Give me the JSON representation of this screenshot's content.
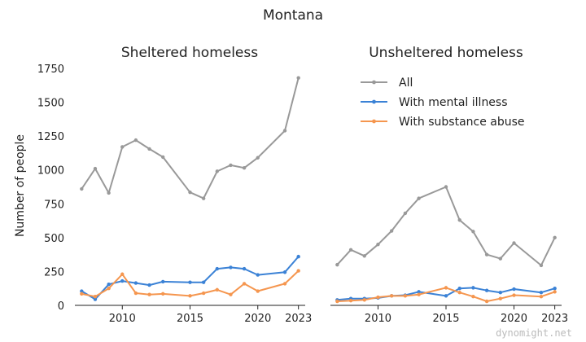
{
  "title": "Montana",
  "watermark": "dynomight.net",
  "colors": {
    "all": "#999999",
    "mental": "#3b82d6",
    "substance": "#f5964f"
  },
  "chart_data": [
    {
      "type": "line",
      "title": "Sheltered homeless",
      "ylabel": "Number of people",
      "xlim": [
        2006.5,
        2023.5
      ],
      "ylim": [
        0,
        1750
      ],
      "xticks": [
        "2010",
        "2015",
        "2020",
        "2023"
      ],
      "yticks": [
        "0",
        "250",
        "500",
        "750",
        "1000",
        "1250",
        "1500",
        "1750"
      ],
      "x": [
        2007,
        2008,
        2009,
        2010,
        2011,
        2012,
        2013,
        2015,
        2016,
        2017,
        2018,
        2019,
        2020,
        2022,
        2023
      ],
      "series": [
        {
          "name": "All",
          "color": "#999999",
          "values": [
            860,
            1010,
            830,
            1170,
            1220,
            1155,
            1095,
            835,
            790,
            990,
            1035,
            1015,
            1090,
            1290,
            1680
          ]
        },
        {
          "name": "With mental illness",
          "color": "#3b82d6",
          "values": [
            105,
            45,
            155,
            180,
            165,
            150,
            175,
            170,
            170,
            270,
            280,
            270,
            225,
            245,
            360
          ]
        },
        {
          "name": "With substance abuse",
          "color": "#f5964f",
          "values": [
            85,
            65,
            125,
            230,
            90,
            80,
            85,
            70,
            90,
            115,
            80,
            160,
            105,
            160,
            255
          ]
        }
      ]
    },
    {
      "type": "line",
      "title": "Unsheltered homeless",
      "xlim": [
        2006.5,
        2023.5
      ],
      "ylim": [
        0,
        1750
      ],
      "xticks": [
        "2010",
        "2015",
        "2020",
        "2023"
      ],
      "x": [
        2007,
        2008,
        2009,
        2010,
        2011,
        2012,
        2013,
        2015,
        2016,
        2017,
        2018,
        2019,
        2020,
        2022,
        2023
      ],
      "legend": {
        "placement": "top-right"
      },
      "series": [
        {
          "name": "All",
          "color": "#999999",
          "values": [
            300,
            410,
            365,
            450,
            550,
            680,
            790,
            875,
            630,
            545,
            375,
            345,
            460,
            295,
            500
          ]
        },
        {
          "name": "With mental illness",
          "color": "#3b82d6",
          "values": [
            40,
            50,
            50,
            55,
            70,
            75,
            100,
            70,
            125,
            130,
            110,
            95,
            120,
            95,
            125
          ]
        },
        {
          "name": "With substance abuse",
          "color": "#f5964f",
          "values": [
            30,
            35,
            40,
            60,
            70,
            70,
            80,
            130,
            95,
            65,
            30,
            50,
            75,
            65,
            100
          ]
        }
      ]
    }
  ]
}
